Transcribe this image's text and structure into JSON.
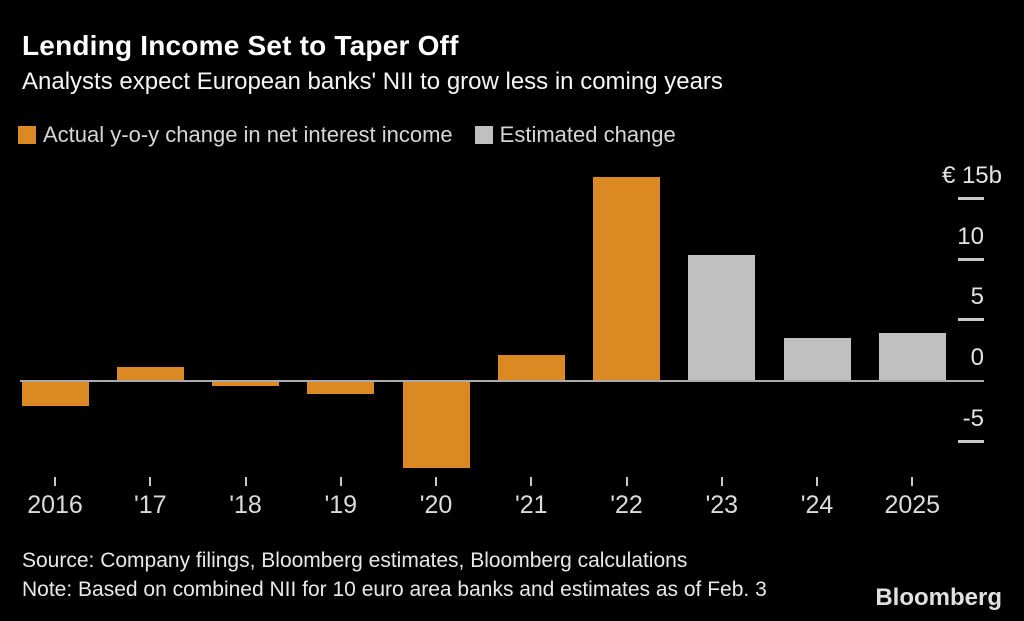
{
  "header": {
    "title": "Lending Income Set to Taper Off",
    "subtitle": "Analysts expect European banks' NII to grow less in coming years"
  },
  "legend": [
    {
      "label": "Actual y-o-y change in net interest income",
      "color": "#db8a23",
      "series": "actual"
    },
    {
      "label": "Estimated change",
      "color": "#c0c0c0",
      "series": "estimated"
    }
  ],
  "chart_data": {
    "type": "bar",
    "title": "Lending Income Set to Taper Off",
    "subtitle": "Analysts expect European banks' NII to grow less in coming years",
    "unit": "billion EUR",
    "categories": [
      "2016",
      "'17",
      "'18",
      "'19",
      "'20",
      "'21",
      "'22",
      "'23",
      "'24",
      "2025"
    ],
    "series": [
      {
        "name": "Actual y-o-y change in net interest income",
        "key": "actual",
        "color": "#db8a23",
        "values": [
          -2.0,
          1.1,
          -0.3,
          -1.0,
          -7.1,
          2.1,
          16.7,
          null,
          null,
          null
        ]
      },
      {
        "name": "Estimated change",
        "key": "estimated",
        "color": "#c0c0c0",
        "values": [
          null,
          null,
          null,
          null,
          null,
          null,
          null,
          10.3,
          3.5,
          3.9
        ]
      }
    ],
    "xlabel": "",
    "ylabel": "€ b",
    "ylim": [
      -7.5,
      17.5
    ],
    "grid": false,
    "legend_position": "top",
    "y_axis_ticks": [
      {
        "label": "€ 15b",
        "value": 15,
        "tick": true,
        "unit": true
      },
      {
        "label": "10",
        "value": 10,
        "tick": true,
        "unit": false
      },
      {
        "label": "5",
        "value": 5,
        "tick": true,
        "unit": false
      },
      {
        "label": "0",
        "value": 0,
        "tick": false,
        "unit": false
      },
      {
        "label": "-5",
        "value": -5,
        "tick": true,
        "unit": false
      }
    ]
  },
  "footer": {
    "source": "Source: Company filings, Bloomberg estimates, Bloomberg calculations",
    "note": "Note: Based on combined NII for 10 euro area banks and estimates as of Feb. 3",
    "brand": "Bloomberg"
  },
  "colors": {
    "background": "#000000",
    "actual_bar": "#db8a23",
    "estimated_bar": "#c0c0c0",
    "axis_line": "#ababab",
    "tick": "#c8c8c8",
    "axis_text": "#e3e3e3",
    "title_text": "#ffffff"
  }
}
